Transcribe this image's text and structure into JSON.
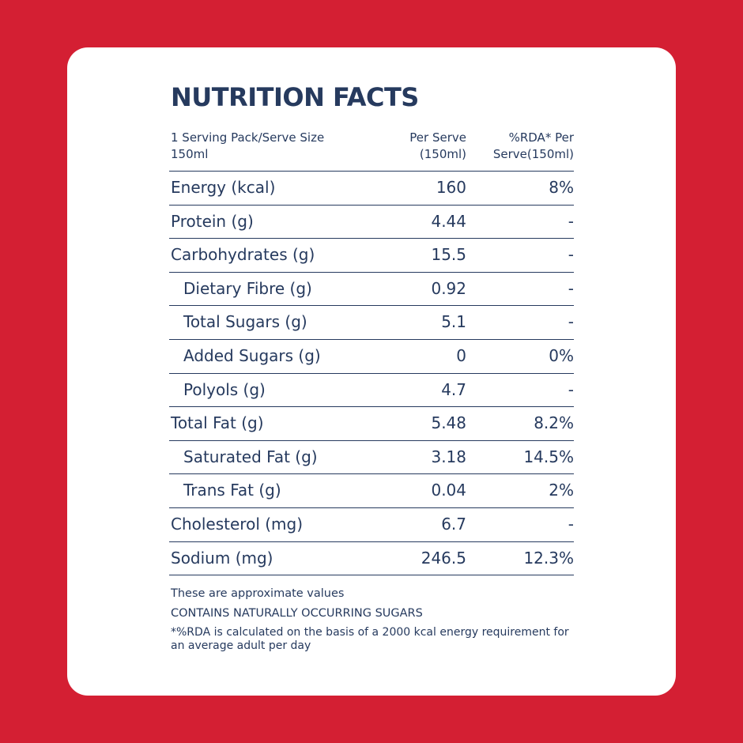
{
  "title": "NUTRITION FACTS",
  "header": {
    "col1": "1 Serving Pack/Serve Size 150ml",
    "col2": "Per Serve (150ml)",
    "col3": "%RDA* Per Serve(150ml)"
  },
  "rows": [
    {
      "label": "Energy (kcal)",
      "per_serve": "160",
      "rda": "8%"
    },
    {
      "label": "Protein (g)",
      "per_serve": "4.44",
      "rda": "-"
    },
    {
      "label": "Carbohydrates (g)",
      "per_serve": "15.5",
      "rda": "-"
    },
    {
      "label": "Dietary Fibre (g)",
      "per_serve": "0.92",
      "rda": "-"
    },
    {
      "label": "Total Sugars (g)",
      "per_serve": "5.1",
      "rda": "-"
    },
    {
      "label": "Added Sugars (g)",
      "per_serve": "0",
      "rda": "0%"
    },
    {
      "label": "Polyols (g)",
      "per_serve": "4.7",
      "rda": "-"
    },
    {
      "label": "Total Fat (g)",
      "per_serve": "5.48",
      "rda": "8.2%"
    },
    {
      "label": "Saturated Fat (g)",
      "per_serve": "3.18",
      "rda": "14.5%"
    },
    {
      "label": "Trans Fat (g)",
      "per_serve": "0.04",
      "rda": "2%"
    },
    {
      "label": "Cholesterol (mg)",
      "per_serve": "6.7",
      "rda": "-"
    },
    {
      "label": "Sodium (mg)",
      "per_serve": "246.5",
      "rda": "12.3%"
    }
  ],
  "notes": {
    "approx": "These are approximate values",
    "sugars": "CONTAINS NATURALLY OCCURRING SUGARS",
    "rda": "*%RDA is calculated on the basis of a 2000 kcal energy requirement for an average adult per day"
  },
  "colors": {
    "background": "#d41f33",
    "card": "#ffffff",
    "text": "#263a5e"
  }
}
